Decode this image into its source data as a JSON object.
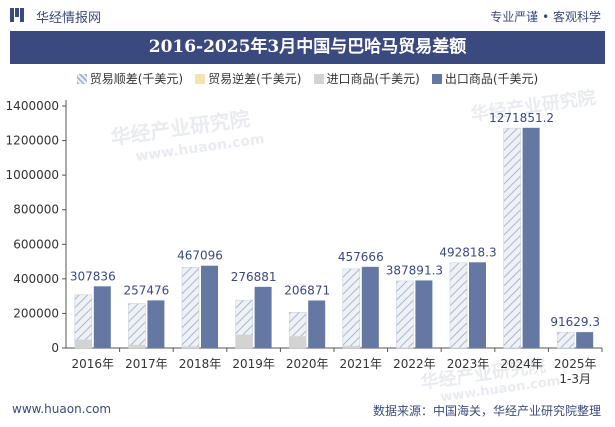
{
  "header": {
    "site_name": "华经情报网",
    "tagline": "专业严谨 • 客观科学"
  },
  "watermarks": {
    "brand": "华经产业研究院",
    "url": "www.huaon.com"
  },
  "chart_data": {
    "type": "bar",
    "title": "2016-2025年3月中国与巴哈马贸易差额",
    "categories": [
      "2016年",
      "2017年",
      "2018年",
      "2019年",
      "2020年",
      "2021年",
      "2022年",
      "2023年",
      "2024年",
      "2025年\n1-3月"
    ],
    "series": [
      {
        "name": "贸易顺差(千美元)",
        "values": [
          307836,
          257476,
          467096,
          276881,
          206871,
          457666,
          387891.3,
          492818.3,
          1271851.2,
          91629.3
        ],
        "color": "#dfe6f0",
        "pattern": "hatch"
      },
      {
        "name": "贸易逆差(千美元)",
        "values": [
          0,
          0,
          0,
          0,
          0,
          0,
          0,
          0,
          0,
          0
        ],
        "color": "#f3e4b0"
      },
      {
        "name": "进口商品(千美元)",
        "values": [
          49000,
          18000,
          9000,
          77000,
          68000,
          12000,
          3000,
          3000,
          2000,
          300
        ],
        "color": "#d3d3d3"
      },
      {
        "name": "出口商品(千美元)",
        "values": [
          356836,
          275476,
          476096,
          353881,
          274871,
          469666,
          390891.3,
          495818.3,
          1273851.2,
          91929.3
        ],
        "color": "#6577a3"
      }
    ],
    "data_labels": [
      "307836",
      "257476",
      "467096",
      "276881",
      "206871",
      "457666",
      "387891.3",
      "492818.3",
      "1271851.2",
      "91629.3"
    ],
    "y_ticks": [
      "0",
      "200000",
      "400000",
      "600000",
      "800000",
      "1000000",
      "1200000",
      "1400000"
    ],
    "ylim": [
      0,
      1400000
    ],
    "legend_position": "top"
  },
  "footer": {
    "left": "www.huaon.com",
    "right": "数据来源：中国海关，华经产业研究院整理"
  }
}
